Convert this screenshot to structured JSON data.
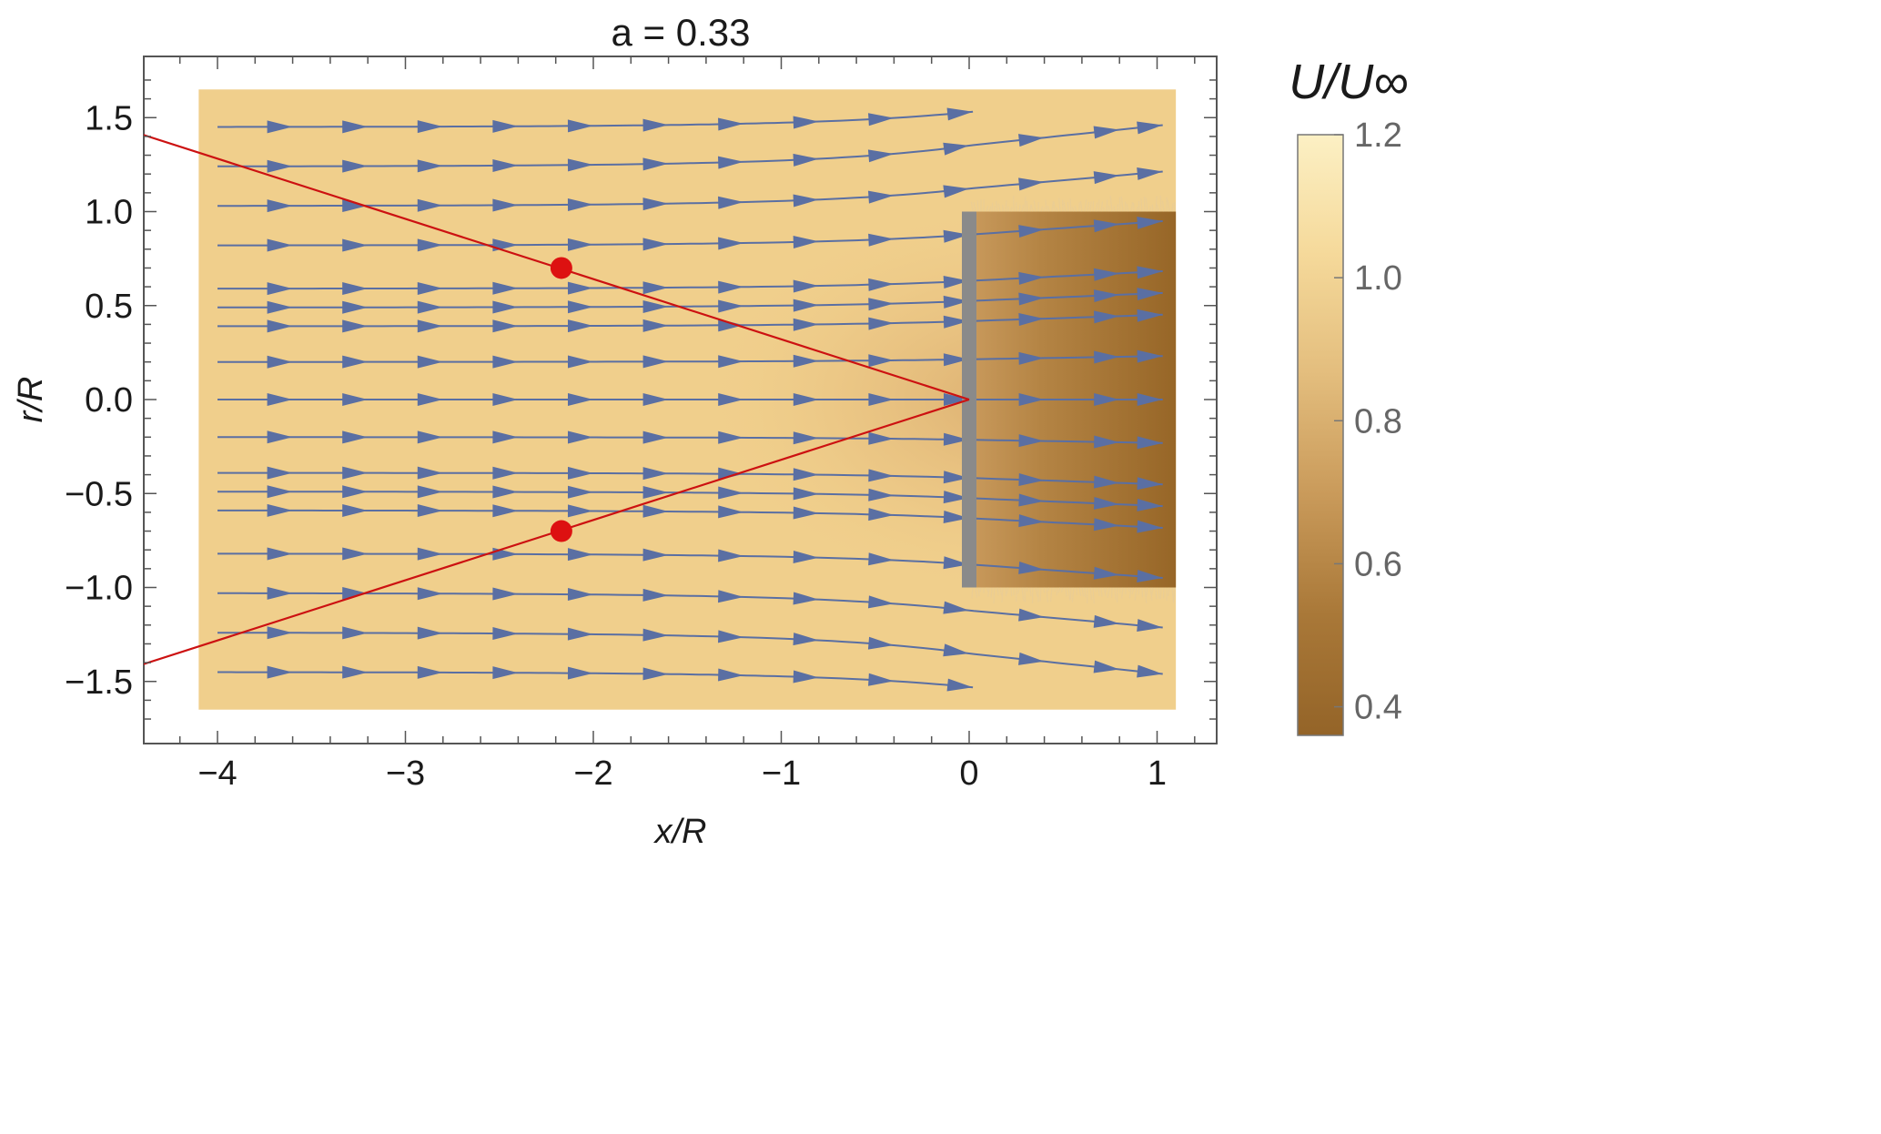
{
  "chart_data": {
    "type": "heatmap",
    "title": "a = 0.33",
    "xlabel": "x/R",
    "ylabel": "r/R",
    "xlim": [
      -4.4,
      1.3
    ],
    "ylim": [
      -1.82,
      1.82
    ],
    "x_ticks": [
      -4,
      -3,
      -2,
      -1,
      0,
      1
    ],
    "x_tick_labels": [
      "−4",
      "−3",
      "−2",
      "−1",
      "0",
      "1"
    ],
    "y_ticks": [
      1.5,
      1.0,
      0.5,
      0.0,
      -0.5,
      -1.0,
      -1.5
    ],
    "y_tick_labels": [
      "1.5",
      "1.0",
      "0.5",
      "0.0",
      "−0.5",
      "−1.0",
      "−1.5"
    ],
    "field_domain": {
      "x": [
        -4.1,
        1.1
      ],
      "r": [
        -1.65,
        1.65
      ]
    },
    "rotor_disk": {
      "x": 0.0,
      "r": [
        -1.0,
        1.0
      ],
      "color": "#8a8a8a"
    },
    "colorbar": {
      "title": "U/U∞",
      "range": [
        0.36,
        1.2
      ],
      "ticks": [
        1.2,
        1.0,
        0.8,
        0.6,
        0.4
      ],
      "tick_labels": [
        "1.2",
        "1.0",
        "0.8",
        "0.6",
        "0.4"
      ],
      "colors": [
        "#fcf0c4",
        "#f5d99a",
        "#e3bd7d",
        "#c99a5a",
        "#a97838",
        "#946428"
      ]
    },
    "free_stream_value": 1.0,
    "wake_value": 0.5,
    "streamline_color": "#5a6fa3",
    "streamline_r0": [
      1.45,
      1.24,
      1.03,
      0.82,
      0.59,
      0.49,
      0.39,
      0.2,
      0.0,
      -0.2,
      -0.39,
      -0.49,
      -0.59,
      -0.82,
      -1.03,
      -1.24,
      -1.45
    ],
    "cone_lines": {
      "color": "#cc1111",
      "vertex": [
        0.0,
        0.0
      ],
      "upper_end": [
        -4.4,
        1.41
      ],
      "lower_end": [
        -4.4,
        -1.41
      ]
    },
    "points": [
      {
        "x": -2.17,
        "r": 0.7,
        "color": "#dd1111"
      },
      {
        "x": -2.17,
        "r": -0.7,
        "color": "#dd1111"
      }
    ]
  }
}
